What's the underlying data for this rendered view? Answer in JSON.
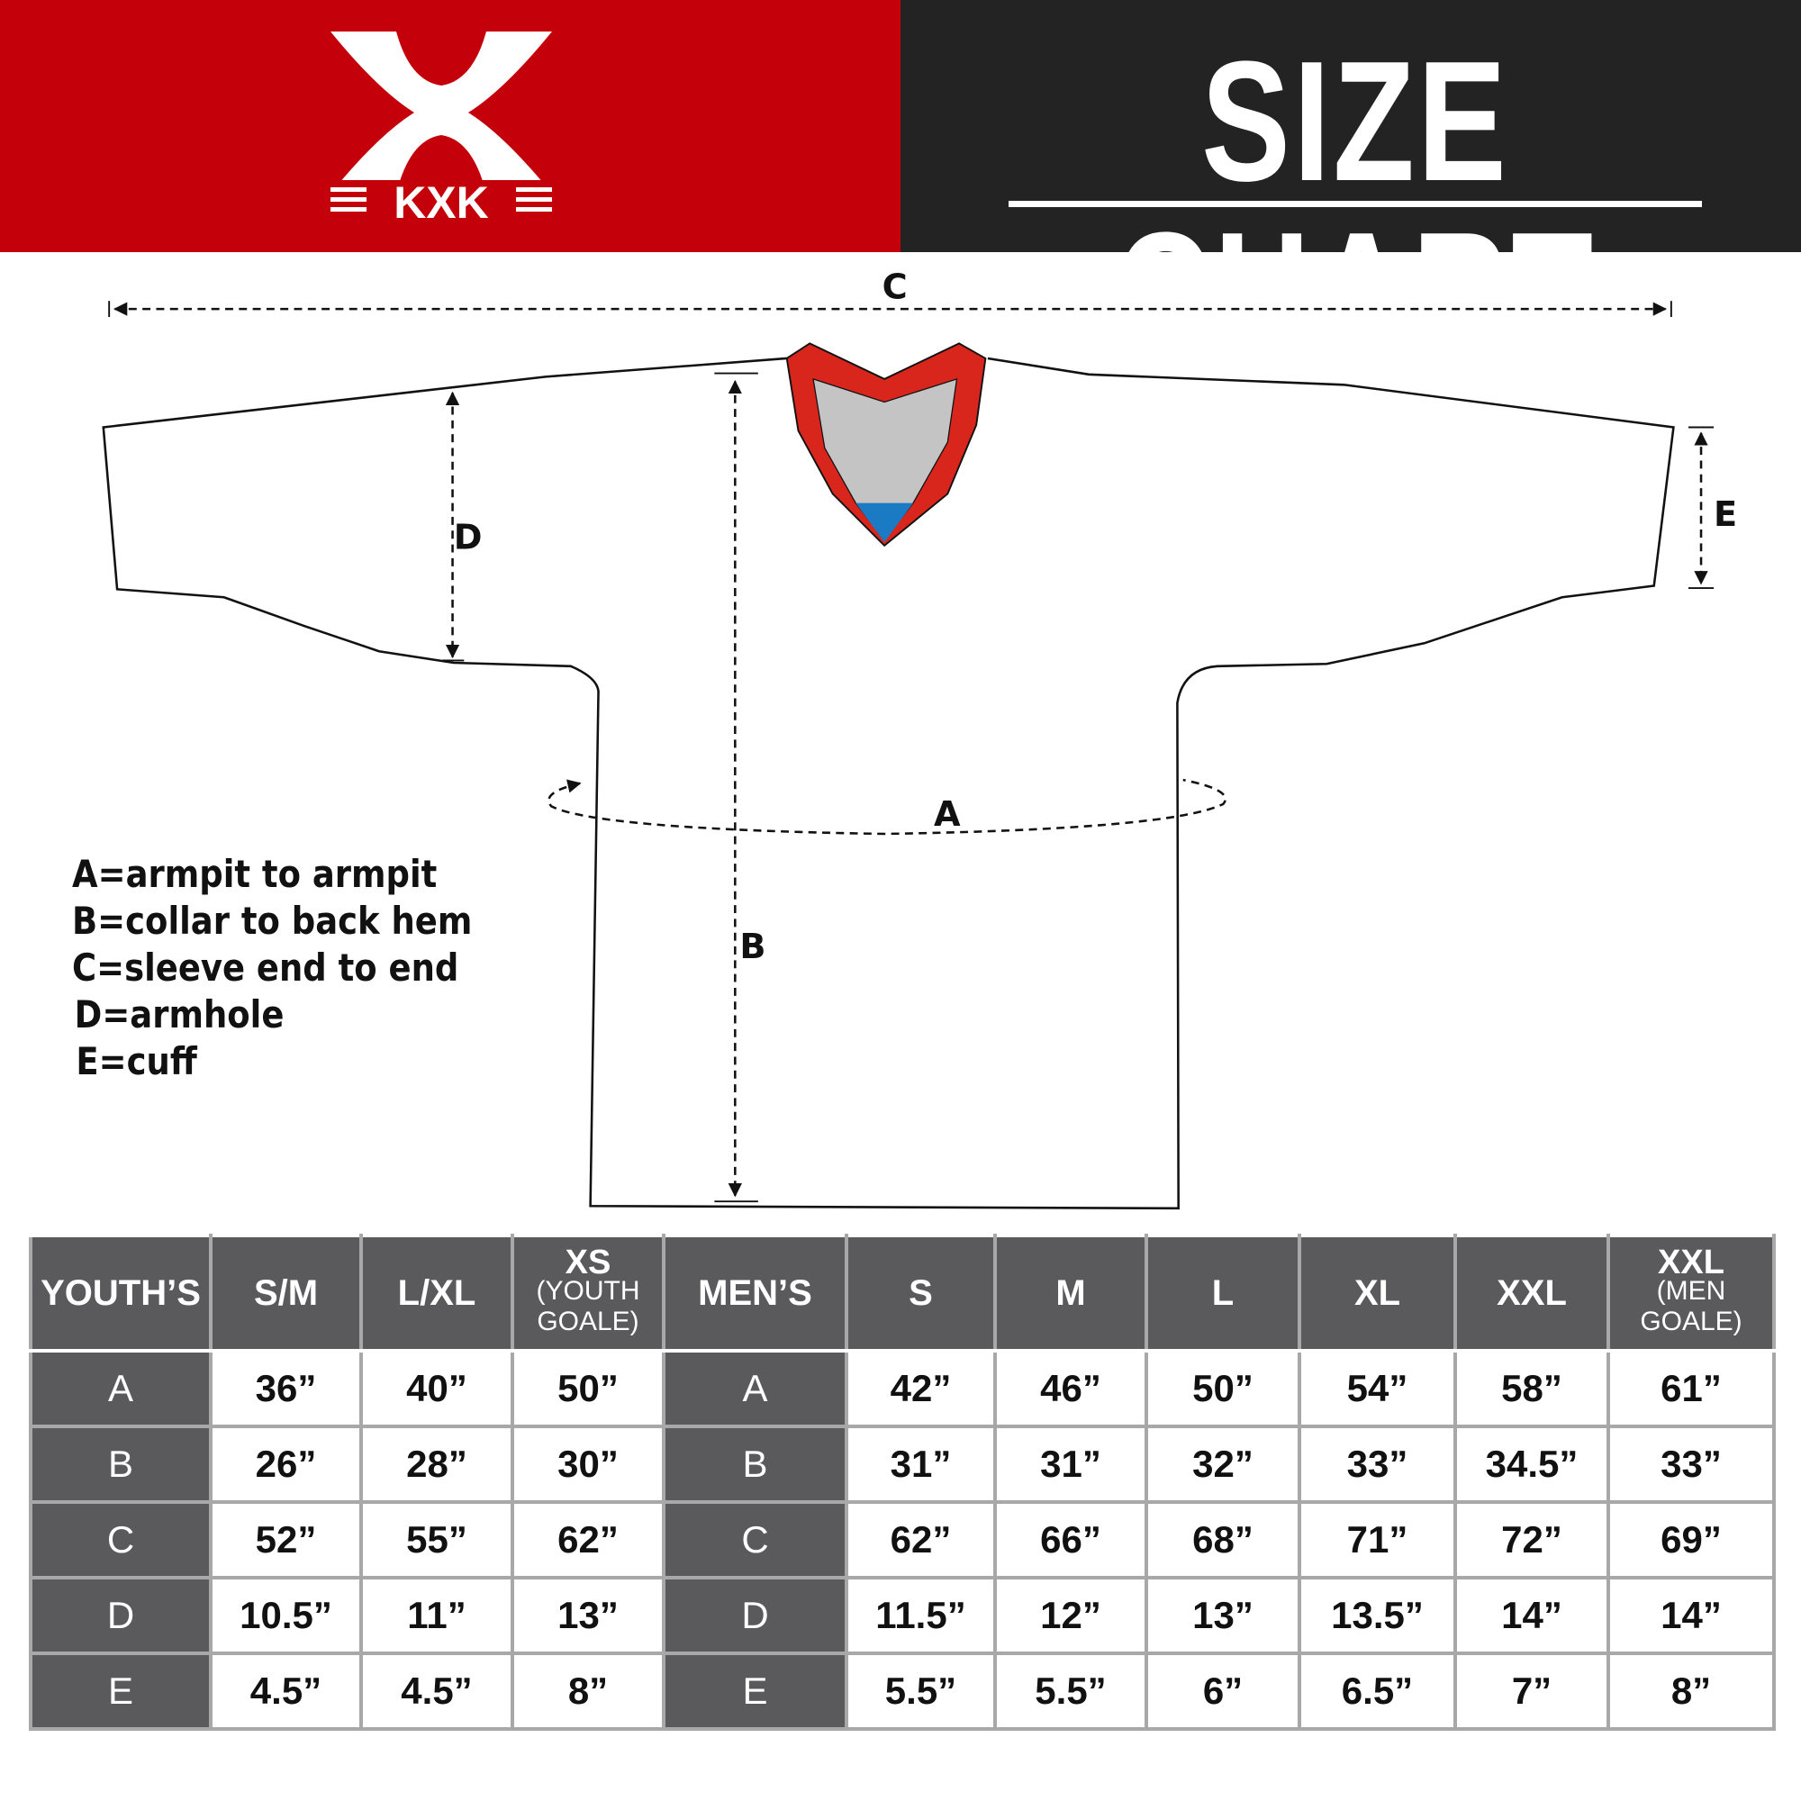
{
  "header": {
    "logo_text": "KXK",
    "title": "SIZE CHART",
    "brand_color": "#c4000a",
    "dark_color": "#232323"
  },
  "diagram": {
    "labels": {
      "a": "A",
      "b": "B",
      "c": "C",
      "d": "D",
      "e": "E"
    },
    "collar_colors": {
      "trim": "#d9261c",
      "inner": "#c4c4c4",
      "accent": "#1a7bc4"
    }
  },
  "legend": [
    "A=armpit to armpit",
    "B=collar to back hem",
    "C=sleeve end to end",
    "D=armhole",
    "E=cuff"
  ],
  "table": {
    "youth_header": "YOUTH’S",
    "youth_sizes": [
      {
        "label": "S/M",
        "sub": ""
      },
      {
        "label": "L/XL",
        "sub": ""
      },
      {
        "label": "XS",
        "sub": "(YOUTH GOALE)"
      }
    ],
    "men_header": "MEN’S",
    "men_sizes": [
      {
        "label": "S",
        "sub": ""
      },
      {
        "label": "M",
        "sub": ""
      },
      {
        "label": "L",
        "sub": ""
      },
      {
        "label": "XL",
        "sub": ""
      },
      {
        "label": "XXL",
        "sub": ""
      },
      {
        "label": "XXL",
        "sub": "(MEN GOALE)"
      }
    ],
    "rows": [
      {
        "key": "A",
        "youth": [
          "36”",
          "40”",
          "50”"
        ],
        "men": [
          "42”",
          "46”",
          "50”",
          "54”",
          "58”",
          "61”"
        ]
      },
      {
        "key": "B",
        "youth": [
          "26”",
          "28”",
          "30”"
        ],
        "men": [
          "31”",
          "31”",
          "32”",
          "33”",
          "34.5”",
          "33”"
        ]
      },
      {
        "key": "C",
        "youth": [
          "52”",
          "55”",
          "62”"
        ],
        "men": [
          "62”",
          "66”",
          "68”",
          "71”",
          "72”",
          "69”"
        ]
      },
      {
        "key": "D",
        "youth": [
          "10.5”",
          "11”",
          "13”"
        ],
        "men": [
          "11.5”",
          "12”",
          "13”",
          "13.5”",
          "14”",
          "14”"
        ]
      },
      {
        "key": "E",
        "youth": [
          "4.5”",
          "4.5”",
          "8”"
        ],
        "men": [
          "5.5”",
          "5.5”",
          "6”",
          "6.5”",
          "7”",
          "8”"
        ]
      }
    ]
  }
}
